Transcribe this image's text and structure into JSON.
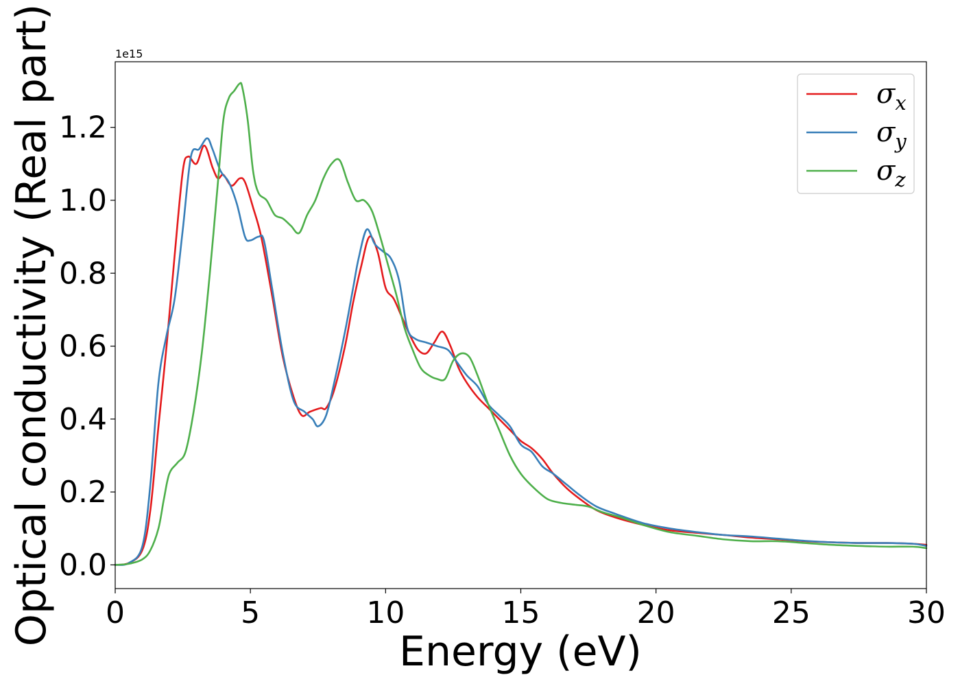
{
  "chart_data": {
    "type": "line",
    "title": "",
    "xlabel": "Energy (eV)",
    "ylabel": "Optical conductivity (Real part)",
    "y_offset_label": "1e15",
    "xlim": [
      0,
      30
    ],
    "ylim": [
      -0.065,
      1.38
    ],
    "x_ticks": [
      0,
      5,
      10,
      15,
      20,
      25,
      30
    ],
    "x_tick_labels": [
      "0",
      "5",
      "10",
      "15",
      "20",
      "25",
      "30"
    ],
    "y_ticks": [
      0.0,
      0.2,
      0.4,
      0.6,
      0.8,
      1.0,
      1.2
    ],
    "y_tick_labels": [
      "0.0",
      "0.2",
      "0.4",
      "0.6",
      "0.8",
      "1.0",
      "1.2"
    ],
    "grid": false,
    "legend_position": "top-right",
    "series": [
      {
        "name": "σx",
        "legend_base": "σ",
        "legend_sub": "x",
        "color": "#e41a1c",
        "x": [
          0,
          0.5,
          1.0,
          1.3,
          1.6,
          1.9,
          2.2,
          2.5,
          2.7,
          3.0,
          3.3,
          3.6,
          3.8,
          4.0,
          4.3,
          4.6,
          4.8,
          5.1,
          5.4,
          5.8,
          6.2,
          6.6,
          6.9,
          7.2,
          7.6,
          7.8,
          8.1,
          8.5,
          8.8,
          9.1,
          9.4,
          9.7,
          10.0,
          10.3,
          10.6,
          10.9,
          11.2,
          11.5,
          11.8,
          12.1,
          12.4,
          12.7,
          13.0,
          13.4,
          13.8,
          14.2,
          14.6,
          15.0,
          15.4,
          15.8,
          16.2,
          16.7,
          17.2,
          17.8,
          18.5,
          19.5,
          20.5,
          21.5,
          22.5,
          23.5,
          24.5,
          25.5,
          26.5,
          27.5,
          28.5,
          29.5,
          30.0
        ],
        "y": [
          0.0,
          0.005,
          0.04,
          0.15,
          0.38,
          0.6,
          0.85,
          1.08,
          1.12,
          1.1,
          1.15,
          1.09,
          1.06,
          1.07,
          1.04,
          1.06,
          1.05,
          0.98,
          0.9,
          0.74,
          0.57,
          0.46,
          0.41,
          0.42,
          0.43,
          0.43,
          0.48,
          0.6,
          0.72,
          0.82,
          0.9,
          0.86,
          0.76,
          0.73,
          0.68,
          0.63,
          0.59,
          0.58,
          0.61,
          0.64,
          0.6,
          0.54,
          0.5,
          0.46,
          0.43,
          0.4,
          0.37,
          0.34,
          0.32,
          0.29,
          0.25,
          0.21,
          0.18,
          0.15,
          0.13,
          0.11,
          0.095,
          0.088,
          0.082,
          0.075,
          0.07,
          0.065,
          0.062,
          0.06,
          0.06,
          0.058,
          0.055
        ]
      },
      {
        "name": "σy",
        "legend_base": "σ",
        "legend_sub": "y",
        "color": "#377eb8",
        "x": [
          0,
          0.5,
          1.0,
          1.3,
          1.6,
          1.9,
          2.2,
          2.5,
          2.8,
          3.1,
          3.4,
          3.6,
          3.9,
          4.2,
          4.5,
          4.8,
          5.0,
          5.3,
          5.5,
          5.8,
          6.2,
          6.6,
          7.0,
          7.3,
          7.5,
          7.8,
          8.1,
          8.5,
          8.8,
          9.0,
          9.3,
          9.6,
          9.9,
          10.2,
          10.5,
          10.8,
          11.1,
          11.5,
          11.9,
          12.3,
          12.6,
          13.0,
          13.4,
          13.8,
          14.2,
          14.6,
          15.0,
          15.4,
          15.8,
          16.2,
          16.7,
          17.2,
          17.8,
          18.5,
          19.5,
          20.5,
          21.5,
          22.5,
          23.5,
          24.5,
          25.5,
          26.5,
          27.5,
          28.5,
          29.5,
          30.0
        ],
        "y": [
          0.0,
          0.005,
          0.05,
          0.22,
          0.5,
          0.63,
          0.73,
          0.92,
          1.12,
          1.14,
          1.17,
          1.14,
          1.08,
          1.05,
          0.99,
          0.9,
          0.89,
          0.9,
          0.89,
          0.76,
          0.58,
          0.45,
          0.42,
          0.4,
          0.38,
          0.41,
          0.5,
          0.64,
          0.76,
          0.84,
          0.92,
          0.88,
          0.86,
          0.84,
          0.78,
          0.65,
          0.62,
          0.61,
          0.6,
          0.59,
          0.56,
          0.52,
          0.49,
          0.44,
          0.41,
          0.38,
          0.33,
          0.31,
          0.27,
          0.25,
          0.22,
          0.19,
          0.16,
          0.14,
          0.115,
          0.1,
          0.09,
          0.082,
          0.078,
          0.072,
          0.066,
          0.062,
          0.06,
          0.06,
          0.058,
          0.052
        ]
      },
      {
        "name": "σz",
        "legend_base": "σ",
        "legend_sub": "z",
        "color": "#4daf4a",
        "x": [
          0,
          0.5,
          1.0,
          1.3,
          1.6,
          1.8,
          2.0,
          2.3,
          2.6,
          2.9,
          3.2,
          3.5,
          3.8,
          4.0,
          4.2,
          4.4,
          4.6,
          4.7,
          4.9,
          5.1,
          5.3,
          5.6,
          5.9,
          6.2,
          6.5,
          6.8,
          7.1,
          7.4,
          7.7,
          8.0,
          8.3,
          8.6,
          8.9,
          9.2,
          9.5,
          9.8,
          10.1,
          10.4,
          10.7,
          11.0,
          11.3,
          11.6,
          11.9,
          12.2,
          12.5,
          12.8,
          13.1,
          13.4,
          13.8,
          14.2,
          14.6,
          15.0,
          15.5,
          16.0,
          16.5,
          17.0,
          17.5,
          18.0,
          18.7,
          19.5,
          20.5,
          21.5,
          22.5,
          23.5,
          24.5,
          25.5,
          26.5,
          27.5,
          28.5,
          29.5,
          30.0
        ],
        "y": [
          0.0,
          0.003,
          0.015,
          0.04,
          0.1,
          0.18,
          0.25,
          0.28,
          0.31,
          0.42,
          0.58,
          0.8,
          1.05,
          1.22,
          1.28,
          1.3,
          1.32,
          1.31,
          1.22,
          1.08,
          1.02,
          1.0,
          0.96,
          0.95,
          0.93,
          0.91,
          0.96,
          1.0,
          1.06,
          1.1,
          1.11,
          1.05,
          1.0,
          1.0,
          0.97,
          0.9,
          0.82,
          0.74,
          0.65,
          0.59,
          0.54,
          0.52,
          0.51,
          0.51,
          0.56,
          0.58,
          0.57,
          0.52,
          0.44,
          0.37,
          0.3,
          0.25,
          0.21,
          0.18,
          0.17,
          0.165,
          0.16,
          0.145,
          0.13,
          0.11,
          0.09,
          0.08,
          0.07,
          0.065,
          0.065,
          0.06,
          0.055,
          0.052,
          0.05,
          0.05,
          0.046
        ]
      }
    ]
  }
}
